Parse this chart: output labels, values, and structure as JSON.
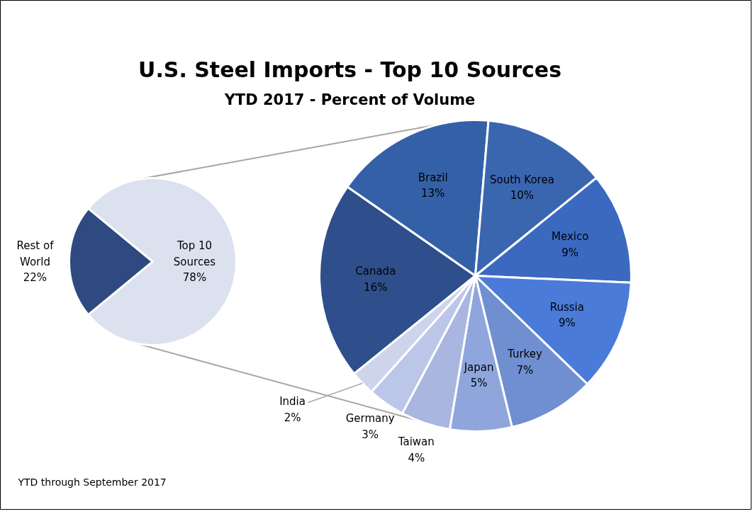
{
  "chart_data": [
    {
      "type": "pie",
      "categories": [
        "Rest of World",
        "Top 10 Sources"
      ],
      "values": [
        22,
        78
      ],
      "value_labels": [
        "22%",
        "78%"
      ],
      "colors": [
        "#2e4a80",
        "#dce1ef"
      ],
      "annotations": [
        "YTD through September 2017"
      ]
    },
    {
      "type": "pie",
      "title": "U.S. Steel Imports - Top 10 Sources",
      "subtitle": "YTD 2017 - Percent of Volume",
      "categories": [
        "Canada",
        "Brazil",
        "South Korea",
        "Mexico",
        "Russia",
        "Turkey",
        "Japan",
        "Taiwan",
        "Germany",
        "India"
      ],
      "values": [
        16,
        13,
        10,
        9,
        9,
        7,
        5,
        4,
        3,
        2
      ],
      "value_labels": [
        "16%",
        "13%",
        "10%",
        "9%",
        "9%",
        "7%",
        "5%",
        "4%",
        "3%",
        "2%"
      ],
      "colors": [
        "#2f4f8c",
        "#3460a8",
        "#3a66b0",
        "#3b69c0",
        "#4a7bd8",
        "#6f8fd0",
        "#8fa6dc",
        "#a8b6e0",
        "#bcc6e8",
        "#cdd4ec"
      ]
    }
  ]
}
